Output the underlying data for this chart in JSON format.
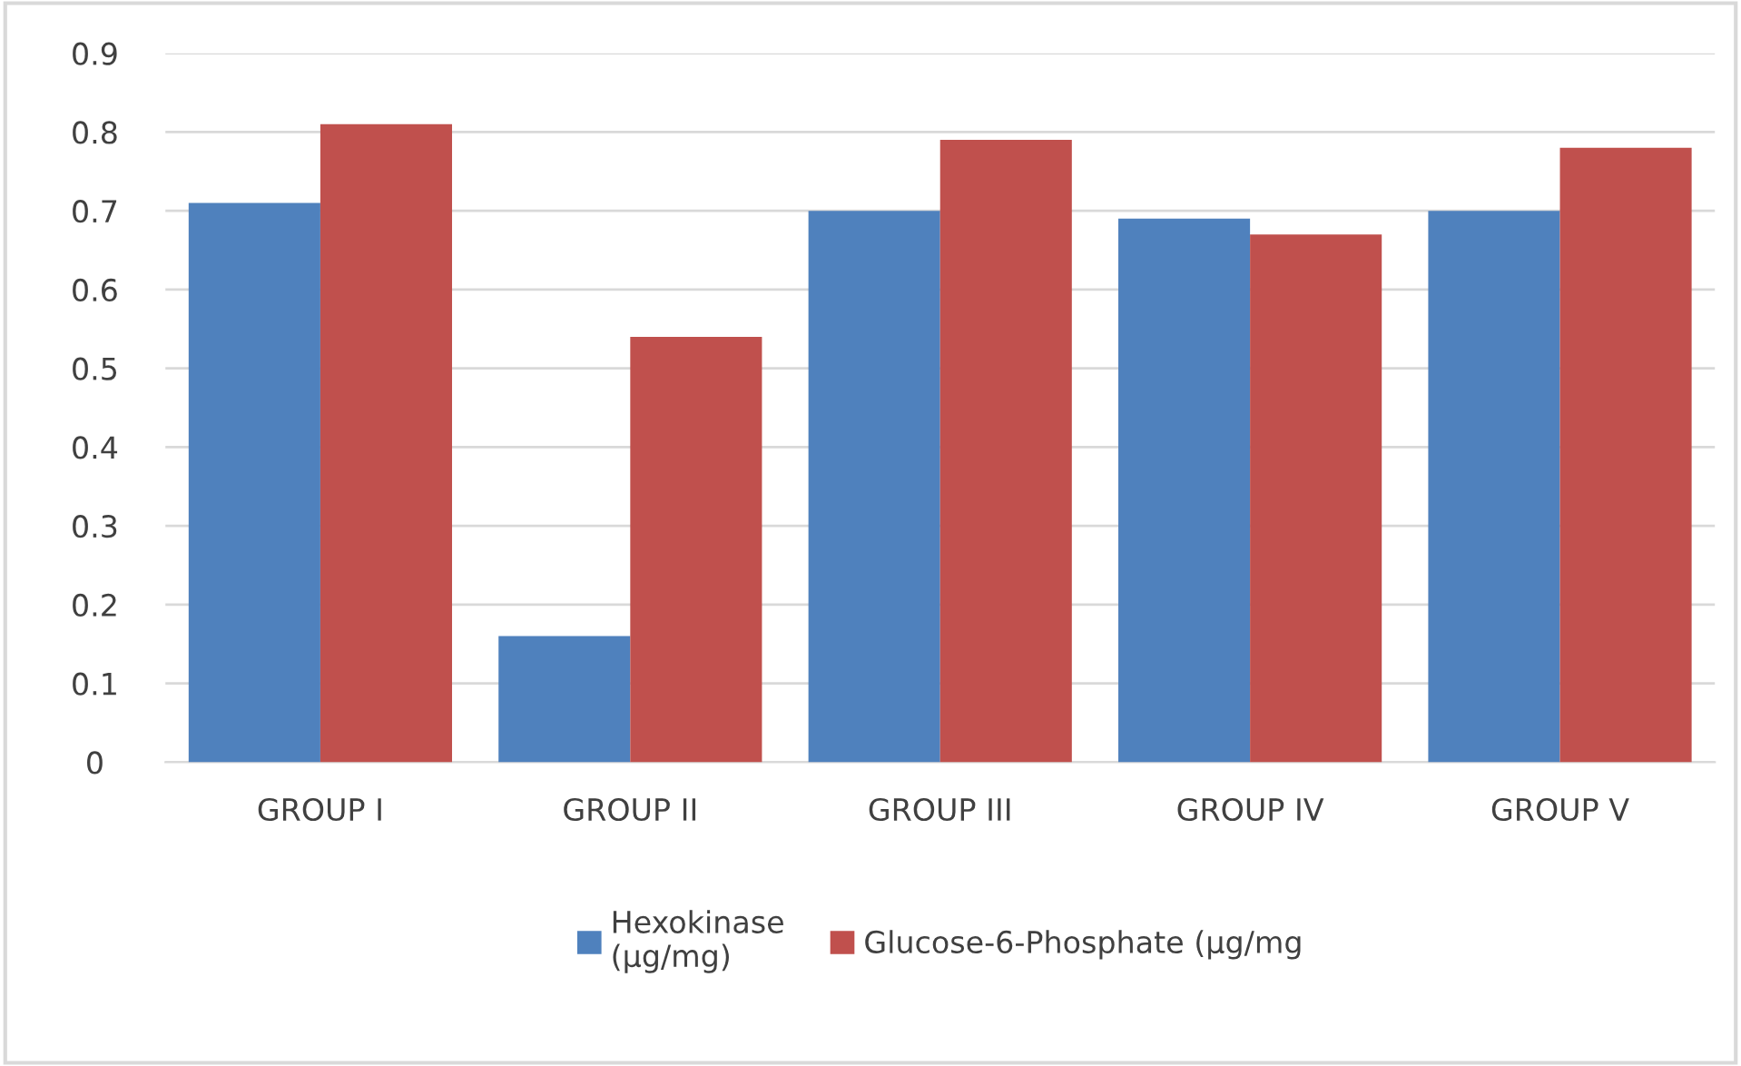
{
  "chart_data": {
    "type": "bar",
    "categories": [
      "GROUP I",
      "GROUP II",
      "GROUP III",
      "GROUP IV",
      "GROUP V"
    ],
    "series": [
      {
        "name": "Hexokinase\n(µg/mg)",
        "color": "#4f81bd",
        "values": [
          0.71,
          0.16,
          0.7,
          0.69,
          0.7
        ]
      },
      {
        "name": "Glucose-6-Phosphate (µg/mg",
        "color": "#c0504d",
        "values": [
          0.81,
          0.54,
          0.79,
          0.67,
          0.78
        ]
      }
    ],
    "ylim": [
      0,
      0.9
    ],
    "yticks": [
      0,
      0.1,
      0.2,
      0.3,
      0.4,
      0.5,
      0.6,
      0.7,
      0.8,
      0.9
    ],
    "grid": "y",
    "legend": "bottom"
  }
}
